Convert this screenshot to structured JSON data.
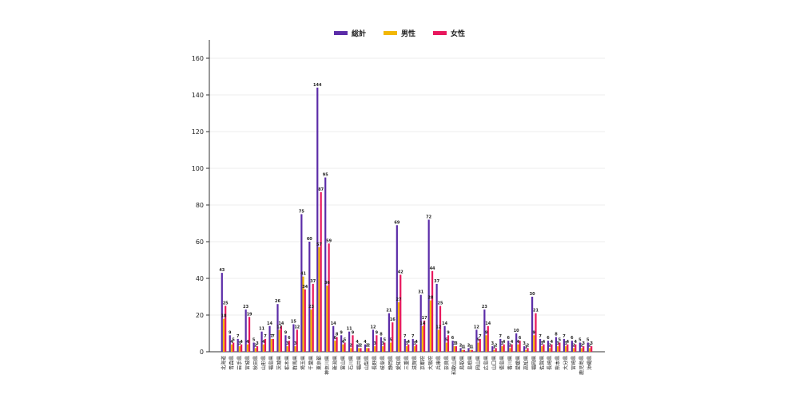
{
  "chart_data": {
    "type": "bar",
    "title": "",
    "xlabel": "",
    "ylabel": "",
    "ylim": [
      0,
      170
    ],
    "yticks": [
      0,
      20,
      40,
      60,
      80,
      100,
      120,
      140,
      160
    ],
    "grid": true,
    "legend_position": "top-center",
    "categories": [
      "北海道",
      "青森県",
      "岩手県",
      "宮城県",
      "秋田県",
      "山形県",
      "福島県",
      "茨城県",
      "栃木県",
      "群馬県",
      "埼玉県",
      "千葉県",
      "東京都",
      "神奈川県",
      "新潟県",
      "富山県",
      "石川県",
      "福井県",
      "山梨県",
      "長野県",
      "岐阜県",
      "静岡県",
      "愛知県",
      "三重県",
      "滋賀県",
      "京都府",
      "大阪府",
      "兵庫県",
      "奈良県",
      "和歌山県",
      "鳥取県",
      "島根県",
      "岡山県",
      "広島県",
      "山口県",
      "徳島県",
      "香川県",
      "愛媛県",
      "高知県",
      "福岡県",
      "佐賀県",
      "長崎県",
      "熊本県",
      "大分県",
      "宮崎県",
      "鹿児島県",
      "沖縄県"
    ],
    "series": [
      {
        "name": "総計",
        "color": "#5b2ca8",
        "values": [
          43,
          9,
          7,
          23,
          5,
          11,
          14,
          26,
          9,
          15,
          75,
          60,
          144,
          95,
          14,
          9,
          11,
          4,
          4,
          12,
          8,
          21,
          69,
          7,
          7,
          31,
          72,
          37,
          14,
          6,
          2,
          2,
          12,
          23,
          3,
          7,
          6,
          10,
          3,
          30,
          7,
          6,
          8,
          7,
          6,
          5,
          5
        ]
      },
      {
        "name": "男性",
        "color": "#f2b705",
        "values": [
          18,
          4,
          3,
          4,
          2,
          4,
          7,
          12,
          3,
          3,
          41,
          23,
          57,
          36,
          6,
          4,
          2,
          2,
          2,
          3,
          3,
          5,
          27,
          3,
          3,
          14,
          28,
          12,
          5,
          3,
          1,
          1,
          5,
          9,
          1,
          3,
          2,
          4,
          1,
          9,
          3,
          2,
          3,
          3,
          2,
          2,
          2
        ]
      },
      {
        "name": "女性",
        "color": "#e8175d",
        "values": [
          25,
          5,
          4,
          19,
          3,
          7,
          7,
          14,
          6,
          12,
          34,
          37,
          87,
          59,
          8,
          5,
          9,
          2,
          2,
          9,
          5,
          16,
          42,
          4,
          4,
          17,
          44,
          25,
          9,
          3,
          1,
          1,
          7,
          14,
          2,
          4,
          4,
          6,
          2,
          21,
          4,
          4,
          5,
          4,
          4,
          3,
          3
        ]
      }
    ]
  }
}
